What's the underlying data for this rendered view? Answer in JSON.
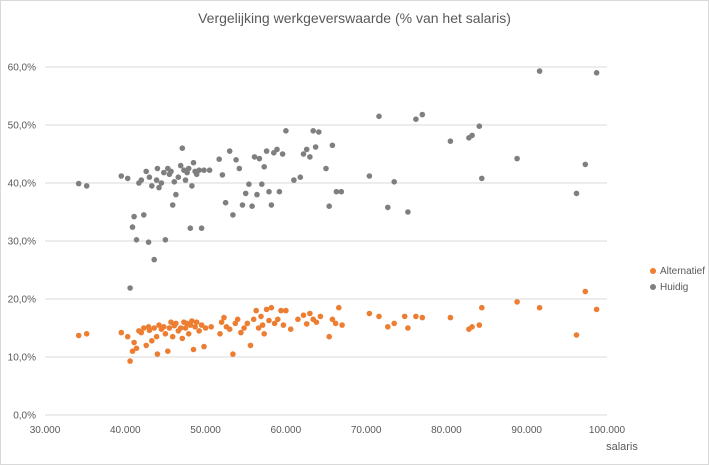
{
  "chart_data": {
    "type": "scatter",
    "title": "Vergelijking werkgeverswaarde (% van het salaris)",
    "xlabel": "salaris",
    "ylabel": "",
    "xlim": [
      30000,
      100000
    ],
    "ylim": [
      0,
      0.65
    ],
    "x_ticks": [
      "30.000",
      "40.000",
      "50.000",
      "60.000",
      "70.000",
      "80.000",
      "90.000",
      "100.000"
    ],
    "y_ticks": [
      "0,0%",
      "10,0%",
      "20,0%",
      "30,0%",
      "40,0%",
      "50,0%",
      "60,0%"
    ],
    "grid": "horizontal",
    "legend_position": "right",
    "series": [
      {
        "name": "Alternatief",
        "color": "#ed7d31",
        "points": [
          [
            34200,
            0.137
          ],
          [
            35200,
            0.14
          ],
          [
            39500,
            0.142
          ],
          [
            40300,
            0.135
          ],
          [
            40600,
            0.093
          ],
          [
            40900,
            0.11
          ],
          [
            41100,
            0.125
          ],
          [
            41400,
            0.115
          ],
          [
            41700,
            0.145
          ],
          [
            42000,
            0.142
          ],
          [
            42300,
            0.15
          ],
          [
            42600,
            0.12
          ],
          [
            42900,
            0.152
          ],
          [
            43000,
            0.146
          ],
          [
            43300,
            0.128
          ],
          [
            43600,
            0.15
          ],
          [
            43900,
            0.135
          ],
          [
            44000,
            0.105
          ],
          [
            44200,
            0.155
          ],
          [
            44500,
            0.148
          ],
          [
            44800,
            0.152
          ],
          [
            45000,
            0.14
          ],
          [
            45300,
            0.11
          ],
          [
            45500,
            0.15
          ],
          [
            45700,
            0.16
          ],
          [
            45900,
            0.135
          ],
          [
            46100,
            0.154
          ],
          [
            46300,
            0.158
          ],
          [
            46600,
            0.145
          ],
          [
            46900,
            0.15
          ],
          [
            47100,
            0.132
          ],
          [
            47300,
            0.16
          ],
          [
            47500,
            0.15
          ],
          [
            47700,
            0.158
          ],
          [
            47900,
            0.14
          ],
          [
            48100,
            0.155
          ],
          [
            48300,
            0.162
          ],
          [
            48500,
            0.113
          ],
          [
            48700,
            0.152
          ],
          [
            48900,
            0.16
          ],
          [
            49200,
            0.145
          ],
          [
            49500,
            0.155
          ],
          [
            49800,
            0.118
          ],
          [
            50000,
            0.15
          ],
          [
            50700,
            0.152
          ],
          [
            51800,
            0.14
          ],
          [
            52000,
            0.16
          ],
          [
            52300,
            0.168
          ],
          [
            52600,
            0.152
          ],
          [
            53000,
            0.148
          ],
          [
            53400,
            0.105
          ],
          [
            53700,
            0.158
          ],
          [
            54000,
            0.165
          ],
          [
            54400,
            0.142
          ],
          [
            54800,
            0.15
          ],
          [
            55200,
            0.158
          ],
          [
            55600,
            0.12
          ],
          [
            56000,
            0.165
          ],
          [
            56300,
            0.18
          ],
          [
            56600,
            0.15
          ],
          [
            56900,
            0.17
          ],
          [
            57100,
            0.155
          ],
          [
            57300,
            0.14
          ],
          [
            57600,
            0.182
          ],
          [
            57900,
            0.163
          ],
          [
            58200,
            0.185
          ],
          [
            58600,
            0.158
          ],
          [
            59000,
            0.165
          ],
          [
            59400,
            0.18
          ],
          [
            59700,
            0.155
          ],
          [
            60000,
            0.18
          ],
          [
            60600,
            0.148
          ],
          [
            61500,
            0.165
          ],
          [
            62200,
            0.172
          ],
          [
            62600,
            0.157
          ],
          [
            63000,
            0.175
          ],
          [
            63400,
            0.165
          ],
          [
            63800,
            0.16
          ],
          [
            64300,
            0.17
          ],
          [
            65400,
            0.135
          ],
          [
            65800,
            0.165
          ],
          [
            66200,
            0.158
          ],
          [
            66600,
            0.185
          ],
          [
            67000,
            0.155
          ],
          [
            70400,
            0.175
          ],
          [
            71600,
            0.17
          ],
          [
            72700,
            0.152
          ],
          [
            73500,
            0.158
          ],
          [
            74800,
            0.17
          ],
          [
            75200,
            0.15
          ],
          [
            76200,
            0.17
          ],
          [
            77000,
            0.168
          ],
          [
            80500,
            0.168
          ],
          [
            82800,
            0.148
          ],
          [
            83200,
            0.152
          ],
          [
            84100,
            0.155
          ],
          [
            84400,
            0.185
          ],
          [
            88800,
            0.195
          ],
          [
            91600,
            0.185
          ],
          [
            96200,
            0.138
          ],
          [
            97300,
            0.213
          ],
          [
            98700,
            0.182
          ]
        ]
      },
      {
        "name": "Huidig",
        "color": "#7f7f7f",
        "points": [
          [
            34200,
            0.399
          ],
          [
            35200,
            0.395
          ],
          [
            39500,
            0.412
          ],
          [
            40300,
            0.408
          ],
          [
            40600,
            0.219
          ],
          [
            40900,
            0.324
          ],
          [
            41100,
            0.342
          ],
          [
            41400,
            0.302
          ],
          [
            41700,
            0.4
          ],
          [
            42000,
            0.405
          ],
          [
            42300,
            0.345
          ],
          [
            42600,
            0.42
          ],
          [
            42900,
            0.298
          ],
          [
            43000,
            0.41
          ],
          [
            43300,
            0.395
          ],
          [
            43600,
            0.268
          ],
          [
            43900,
            0.405
          ],
          [
            44000,
            0.425
          ],
          [
            44200,
            0.392
          ],
          [
            44500,
            0.4
          ],
          [
            44800,
            0.418
          ],
          [
            45000,
            0.302
          ],
          [
            45300,
            0.425
          ],
          [
            45500,
            0.415
          ],
          [
            45700,
            0.42
          ],
          [
            45900,
            0.362
          ],
          [
            46100,
            0.402
          ],
          [
            46300,
            0.38
          ],
          [
            46600,
            0.41
          ],
          [
            46900,
            0.43
          ],
          [
            47100,
            0.46
          ],
          [
            47300,
            0.422
          ],
          [
            47500,
            0.405
          ],
          [
            47700,
            0.418
          ],
          [
            47900,
            0.425
          ],
          [
            48100,
            0.322
          ],
          [
            48300,
            0.395
          ],
          [
            48500,
            0.435
          ],
          [
            48700,
            0.42
          ],
          [
            48900,
            0.415
          ],
          [
            49200,
            0.422
          ],
          [
            49500,
            0.322
          ],
          [
            49800,
            0.422
          ],
          [
            50500,
            0.422
          ],
          [
            51700,
            0.441
          ],
          [
            52100,
            0.414
          ],
          [
            52500,
            0.366
          ],
          [
            53000,
            0.455
          ],
          [
            53400,
            0.345
          ],
          [
            53800,
            0.44
          ],
          [
            54200,
            0.425
          ],
          [
            54600,
            0.362
          ],
          [
            55000,
            0.382
          ],
          [
            55400,
            0.398
          ],
          [
            55800,
            0.36
          ],
          [
            56100,
            0.445
          ],
          [
            56400,
            0.38
          ],
          [
            56700,
            0.442
          ],
          [
            57000,
            0.398
          ],
          [
            57300,
            0.428
          ],
          [
            57600,
            0.455
          ],
          [
            57900,
            0.385
          ],
          [
            58200,
            0.362
          ],
          [
            58500,
            0.452
          ],
          [
            58900,
            0.458
          ],
          [
            59200,
            0.385
          ],
          [
            59600,
            0.45
          ],
          [
            60000,
            0.49
          ],
          [
            61000,
            0.405
          ],
          [
            61800,
            0.41
          ],
          [
            62200,
            0.45
          ],
          [
            62600,
            0.458
          ],
          [
            63000,
            0.445
          ],
          [
            63400,
            0.49
          ],
          [
            63700,
            0.462
          ],
          [
            64100,
            0.488
          ],
          [
            65000,
            0.425
          ],
          [
            65400,
            0.36
          ],
          [
            65800,
            0.465
          ],
          [
            66300,
            0.385
          ],
          [
            66900,
            0.385
          ],
          [
            70400,
            0.412
          ],
          [
            71600,
            0.515
          ],
          [
            72700,
            0.358
          ],
          [
            73500,
            0.402
          ],
          [
            75200,
            0.35
          ],
          [
            76200,
            0.51
          ],
          [
            77000,
            0.518
          ],
          [
            80500,
            0.472
          ],
          [
            82800,
            0.478
          ],
          [
            83200,
            0.482
          ],
          [
            84100,
            0.498
          ],
          [
            84400,
            0.408
          ],
          [
            88800,
            0.442
          ],
          [
            91600,
            0.593
          ],
          [
            96200,
            0.382
          ],
          [
            97300,
            0.432
          ],
          [
            98700,
            0.59
          ]
        ]
      }
    ]
  },
  "legend": {
    "alternatief": "Alternatief",
    "huidig": "Huidig"
  }
}
